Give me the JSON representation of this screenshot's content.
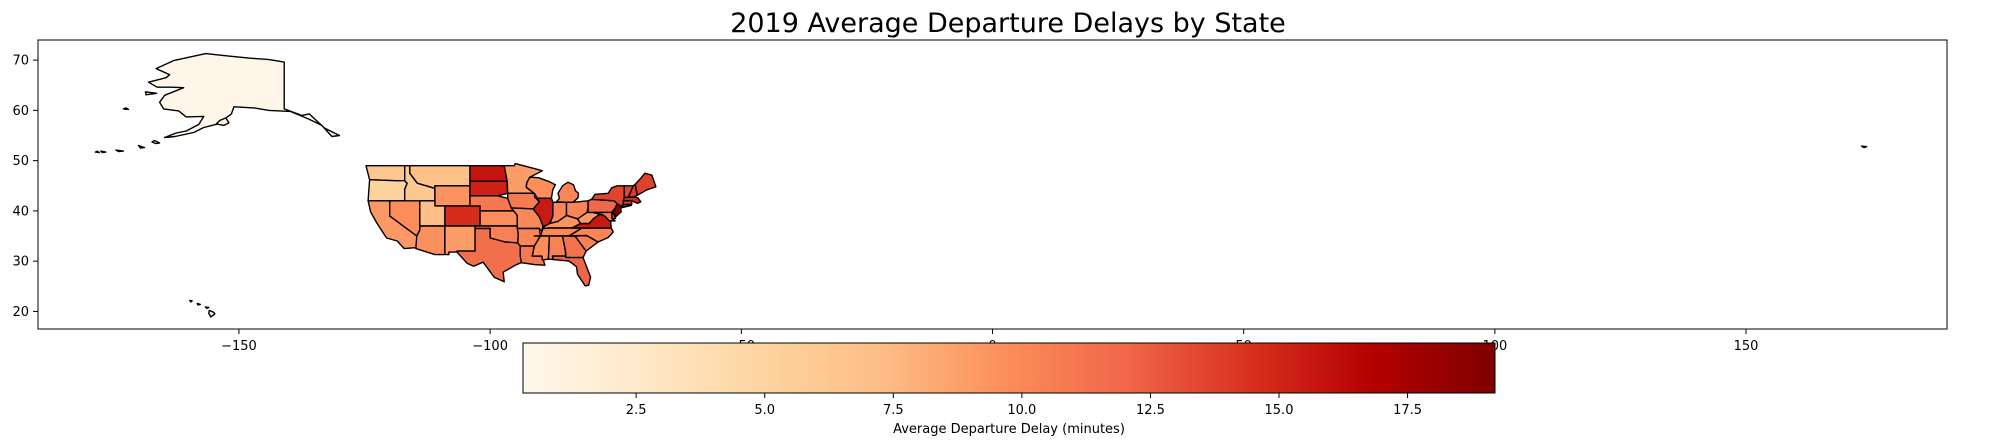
{
  "chart_data": {
    "type": "choropleth",
    "title": "2019 Average Departure Delays by State",
    "xlim": [
      -190,
      190
    ],
    "ylim": [
      16.5,
      74
    ],
    "xticks": [
      -150,
      -100,
      -50,
      0,
      50,
      100,
      150
    ],
    "yticks": [
      20,
      30,
      40,
      50,
      60,
      70
    ],
    "colorbar": {
      "label": "Average Departure Delay (minutes)",
      "range": [
        0.3,
        19.2
      ],
      "ticks": [
        2.5,
        5.0,
        7.5,
        10.0,
        12.5,
        15.0,
        17.5
      ],
      "colormap": "OrRd",
      "colors": [
        "#fff7ec",
        "#fee8c8",
        "#fdd49e",
        "#fdbb84",
        "#fc8d59",
        "#ef6548",
        "#d7301f",
        "#b30000",
        "#7f0000"
      ]
    },
    "states": [
      {
        "name": "Washington",
        "value": 6.3
      },
      {
        "name": "Oregon",
        "value": 5.0
      },
      {
        "name": "California",
        "value": 9.2
      },
      {
        "name": "Nevada",
        "value": 9.8
      },
      {
        "name": "Idaho",
        "value": 6.1
      },
      {
        "name": "Montana",
        "value": 6.8
      },
      {
        "name": "Wyoming",
        "value": 9.5
      },
      {
        "name": "Utah",
        "value": 7.2
      },
      {
        "name": "Arizona",
        "value": 9.6
      },
      {
        "name": "Colorado",
        "value": 14.6
      },
      {
        "name": "New Mexico",
        "value": 9.0
      },
      {
        "name": "North Dakota",
        "value": 15.8
      },
      {
        "name": "South Dakota",
        "value": 15.2
      },
      {
        "name": "Nebraska",
        "value": 11.0
      },
      {
        "name": "Kansas",
        "value": 9.8
      },
      {
        "name": "Oklahoma",
        "value": 10.5
      },
      {
        "name": "Texas",
        "value": 11.5
      },
      {
        "name": "Minnesota",
        "value": 9.0
      },
      {
        "name": "Iowa",
        "value": 10.8
      },
      {
        "name": "Missouri",
        "value": 10.0
      },
      {
        "name": "Arkansas",
        "value": 10.2
      },
      {
        "name": "Louisiana",
        "value": 10.9
      },
      {
        "name": "Wisconsin",
        "value": 9.7
      },
      {
        "name": "Illinois",
        "value": 15.5
      },
      {
        "name": "Michigan",
        "value": 10.1
      },
      {
        "name": "Indiana",
        "value": 10.2
      },
      {
        "name": "Ohio",
        "value": 10.3
      },
      {
        "name": "Kentucky",
        "value": 9.4
      },
      {
        "name": "Tennessee",
        "value": 10.0
      },
      {
        "name": "Mississippi",
        "value": 9.8
      },
      {
        "name": "Alabama",
        "value": 10.4
      },
      {
        "name": "Georgia",
        "value": 11.3
      },
      {
        "name": "Florida",
        "value": 12.1
      },
      {
        "name": "South Carolina",
        "value": 10.5
      },
      {
        "name": "North Carolina",
        "value": 10.2
      },
      {
        "name": "Virginia",
        "value": 15.6
      },
      {
        "name": "West Virginia",
        "value": 9.2
      },
      {
        "name": "Pennsylvania",
        "value": 12.0
      },
      {
        "name": "New York",
        "value": 13.6
      },
      {
        "name": "New Jersey",
        "value": 18.9
      },
      {
        "name": "Maryland",
        "value": 11.0
      },
      {
        "name": "Delaware",
        "value": 13.0
      },
      {
        "name": "Connecticut",
        "value": 14.0
      },
      {
        "name": "Massachusetts",
        "value": 14.8
      },
      {
        "name": "Vermont",
        "value": 13.5
      },
      {
        "name": "New Hampshire",
        "value": 14.0
      },
      {
        "name": "Maine",
        "value": 13.7
      },
      {
        "name": "Alaska",
        "value": 0.5
      },
      {
        "name": "Hawaii",
        "value": 0.5
      }
    ]
  }
}
